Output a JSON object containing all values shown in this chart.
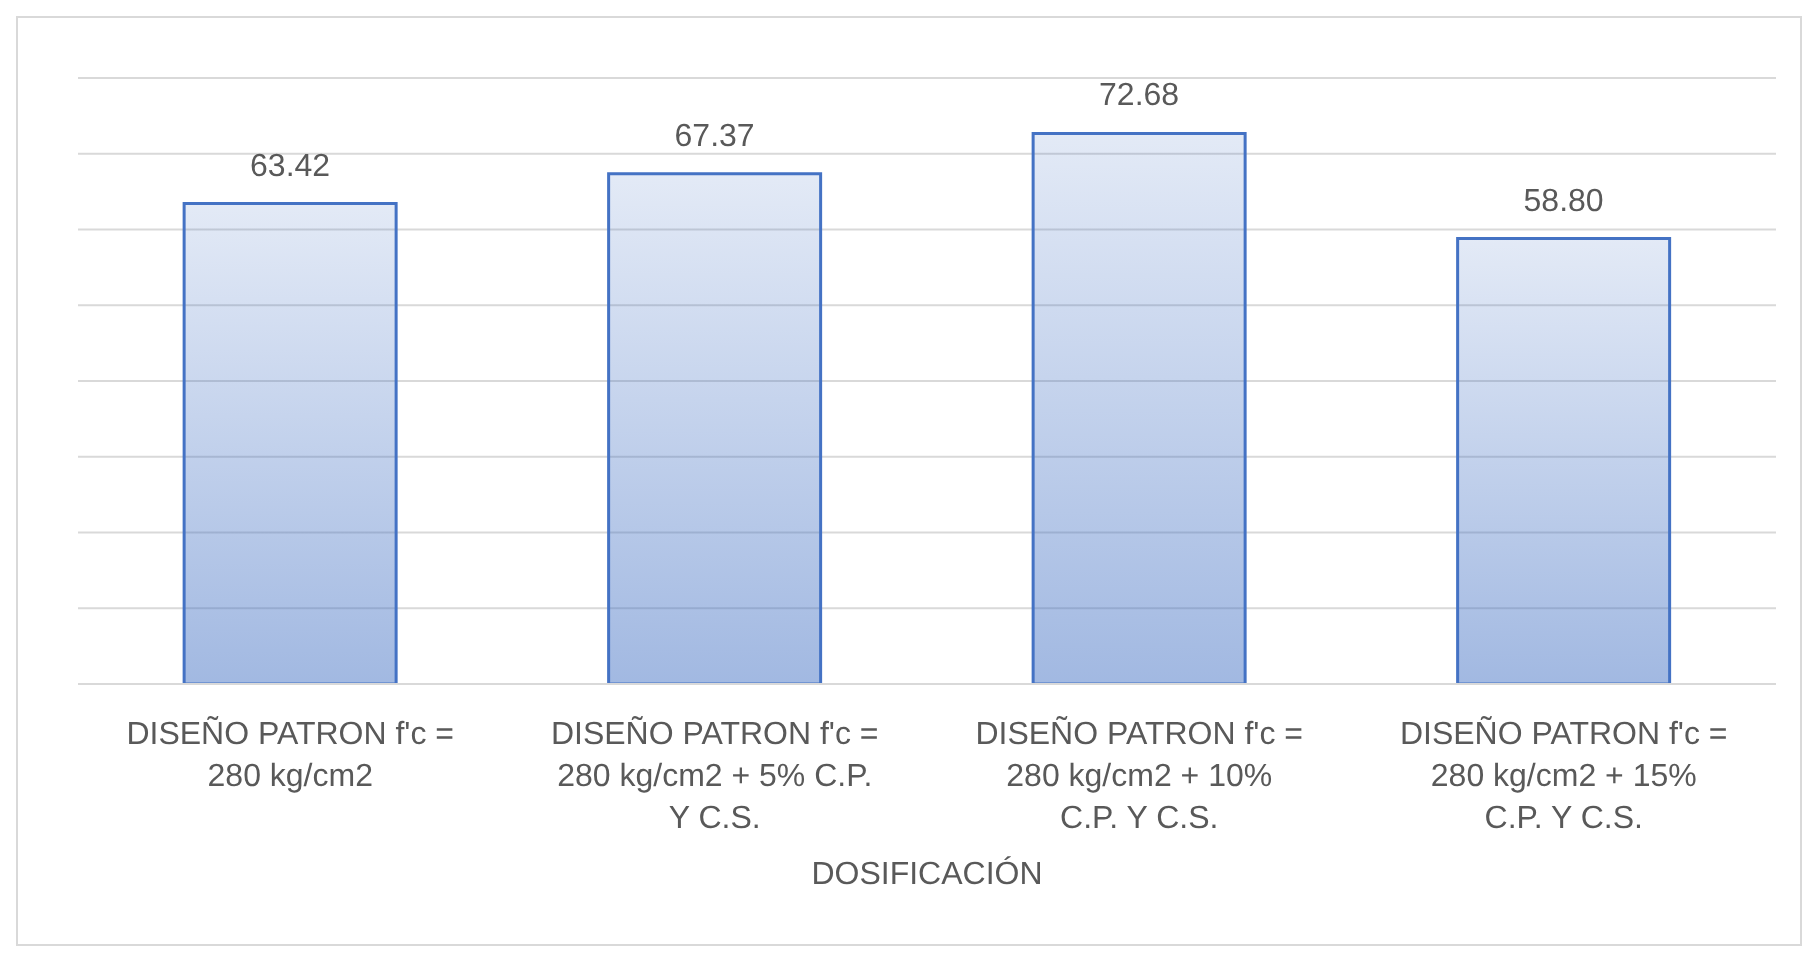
{
  "chart_data": {
    "type": "bar",
    "xlabel": "DOSIFICACIÓN",
    "categories": [
      "DISEÑO PATRON f'c = 280 kg/cm2",
      "DISEÑO PATRON f'c = 280 kg/cm2 + 5% C.P. Y C.S.",
      "DISEÑO PATRON f'c = 280 kg/cm2 + 10% C.P. Y C.S.",
      "DISEÑO PATRON f'c = 280 kg/cm2 + 15% C.P. Y C.S."
    ],
    "values": [
      63.42,
      67.37,
      72.68,
      58.8
    ],
    "value_labels": [
      "63.42",
      "67.37",
      "72.68",
      "58.80"
    ],
    "color": "#4472c4",
    "ylim": [
      0,
      80
    ],
    "grid": "y",
    "tick_labels": "x"
  }
}
